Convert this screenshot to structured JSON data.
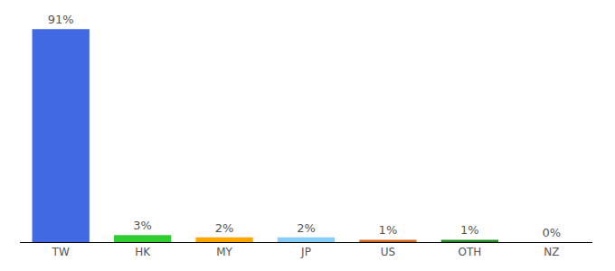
{
  "chart_data": {
    "type": "bar",
    "categories": [
      "TW",
      "HK",
      "MY",
      "JP",
      "US",
      "OTH",
      "NZ"
    ],
    "values": [
      91,
      3,
      2,
      2,
      1,
      1,
      0
    ],
    "value_labels": [
      "91%",
      "3%",
      "2%",
      "2%",
      "1%",
      "1%",
      "0%"
    ],
    "colors": [
      "#4169e1",
      "#32cd32",
      "#ffa500",
      "#87cefa",
      "#d2691e",
      "#228b22",
      "#9932cc"
    ],
    "ylim": [
      0,
      95
    ],
    "grid": false,
    "data_labels": true,
    "tick_labels": "x"
  }
}
